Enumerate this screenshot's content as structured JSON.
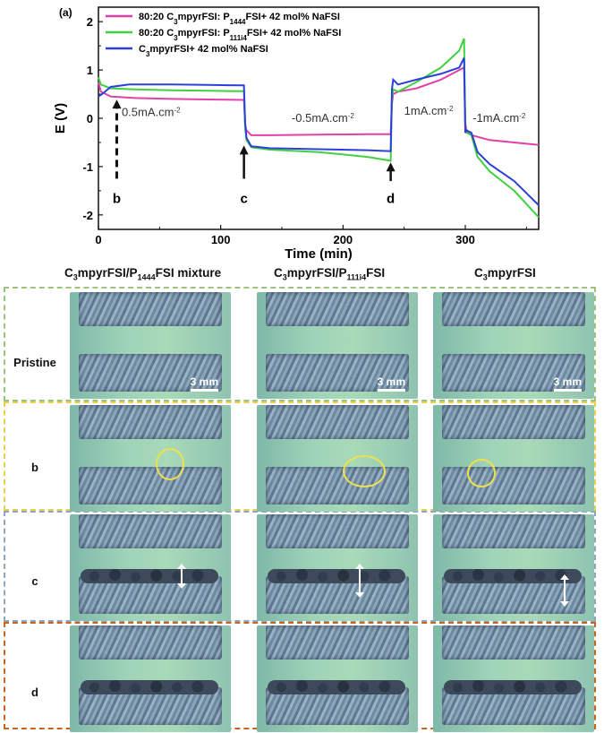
{
  "panel_label": "(a)",
  "chart_data": {
    "type": "line",
    "xlabel": "Time (min)",
    "ylabel": "E (V)",
    "xlim": [
      0,
      360
    ],
    "ylim": [
      -2.3,
      2.3
    ],
    "xticks": [
      0,
      100,
      200,
      300
    ],
    "yticks": [
      -2,
      -1,
      0,
      1,
      2
    ],
    "series": [
      {
        "name": "80:20 C3mpyrFSI: P1444FSI+ 42 mol% NaFSI",
        "label_parts": [
          "80:20 C",
          "3",
          "mpyrFSI: P",
          "1444",
          "FSI+ 42 mol% NaFSI"
        ],
        "color": "#e040a8",
        "x": [
          0,
          2,
          10,
          30,
          60,
          90,
          119,
          120,
          121,
          125,
          140,
          180,
          220,
          239,
          240,
          241,
          245,
          260,
          280,
          299,
          300,
          301,
          305,
          320,
          340,
          360
        ],
        "y": [
          0.75,
          0.55,
          0.45,
          0.42,
          0.4,
          0.39,
          0.38,
          -0.15,
          -0.25,
          -0.35,
          -0.35,
          -0.34,
          -0.33,
          -0.33,
          0.3,
          0.5,
          0.55,
          0.62,
          0.8,
          1.05,
          -0.1,
          -0.25,
          -0.35,
          -0.45,
          -0.5,
          -0.55
        ]
      },
      {
        "name": "80:20 C3mpyrFSI: P111i4FSI+ 42 mol% NaFSI",
        "label_parts": [
          "80:20 C",
          "3",
          "mpyrFSI: P",
          "111i4",
          "FSI+ 42 mol% NaFSI"
        ],
        "color": "#40d040",
        "x": [
          0,
          2,
          10,
          30,
          60,
          90,
          119,
          120,
          121,
          125,
          140,
          180,
          220,
          239,
          240,
          241,
          245,
          260,
          280,
          295,
          299,
          300,
          301,
          305,
          310,
          320,
          340,
          360
        ],
        "y": [
          0.85,
          0.7,
          0.62,
          0.6,
          0.58,
          0.57,
          0.56,
          -0.2,
          -0.45,
          -0.6,
          -0.65,
          -0.7,
          -0.8,
          -0.88,
          0.4,
          0.6,
          0.55,
          0.75,
          1.05,
          1.4,
          1.65,
          -0.2,
          -0.3,
          -0.35,
          -0.8,
          -1.1,
          -1.5,
          -2.05
        ]
      },
      {
        "name": "C3mpyrFSI+ 42 mol% NaFSI",
        "label_parts": [
          "C",
          "3",
          "mpyrFSI+ 42 mol% NaFSI"
        ],
        "color": "#2a40d8",
        "x": [
          0,
          3,
          10,
          25,
          60,
          90,
          119,
          120,
          121,
          125,
          140,
          180,
          220,
          239,
          240,
          241,
          245,
          260,
          280,
          295,
          299,
          300,
          301,
          305,
          310,
          320,
          340,
          360
        ],
        "y": [
          0.45,
          0.5,
          0.65,
          0.7,
          0.7,
          0.69,
          0.68,
          -0.1,
          -0.4,
          -0.58,
          -0.62,
          -0.64,
          -0.66,
          -0.68,
          0.6,
          0.8,
          0.7,
          0.8,
          0.92,
          1.05,
          1.25,
          -0.3,
          -0.25,
          -0.3,
          -0.7,
          -0.95,
          -1.3,
          -1.8
        ]
      }
    ],
    "current_labels": [
      {
        "text": "0.5mA.cm",
        "sup": "-2",
        "x": 19,
        "y": 0.12
      },
      {
        "text": "-0.5mA.cm",
        "sup": "-2",
        "x": 158,
        "y": 0.0
      },
      {
        "text": "1mA.cm",
        "sup": "-2",
        "x": 250,
        "y": 0.15
      },
      {
        "text": "-1mA.cm",
        "sup": "-2",
        "x": 306,
        "y": 0.0
      }
    ],
    "markers": [
      {
        "label": "b",
        "x": 15,
        "style": "dashed"
      },
      {
        "label": "c",
        "x": 119,
        "style": "solid"
      },
      {
        "label": "d",
        "x": 239,
        "style": "solid"
      }
    ]
  },
  "columns": [
    {
      "parts": [
        "C",
        "3",
        "mpyrFSI/P",
        "1444",
        "FSI mixture"
      ]
    },
    {
      "parts": [
        "C",
        "3",
        "mpyrFSI/P",
        "111i4",
        "FSI"
      ]
    },
    {
      "parts": [
        "C",
        "3",
        "mpyrFSI"
      ]
    }
  ],
  "rows": [
    {
      "label": "Pristine",
      "color": "#9cc37a"
    },
    {
      "label": "b",
      "color": "#e8d04a"
    },
    {
      "label": "c",
      "color": "#8ea5c0"
    },
    {
      "label": "d",
      "color": "#c8641e"
    }
  ],
  "scale_bar": "3 mm"
}
